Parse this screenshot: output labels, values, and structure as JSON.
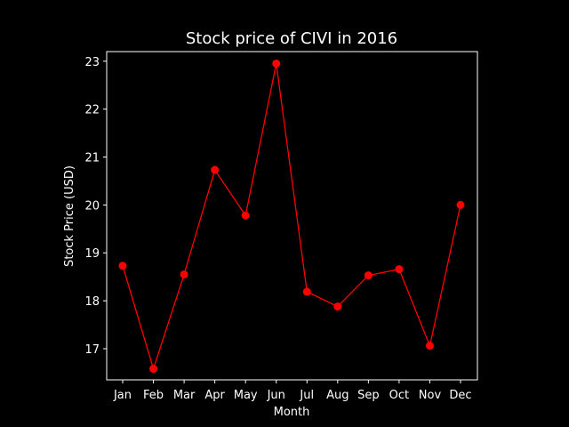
{
  "chart_data": {
    "type": "line",
    "title": "Stock price of CIVI in 2016",
    "xlabel": "Month",
    "ylabel": "Stock Price (USD)",
    "categories": [
      "Jan",
      "Feb",
      "Mar",
      "Apr",
      "May",
      "Jun",
      "Jul",
      "Aug",
      "Sep",
      "Oct",
      "Nov",
      "Dec"
    ],
    "series": [
      {
        "values": [
          18.73,
          16.58,
          18.55,
          20.73,
          19.78,
          22.95,
          18.19,
          17.88,
          18.53,
          18.66,
          17.06,
          20.0
        ],
        "color": "#ff0000"
      }
    ],
    "ylim": [
      16.35,
      23.2
    ],
    "yticks": [
      17,
      18,
      19,
      20,
      21,
      22,
      23
    ],
    "grid": false,
    "background": "#000000",
    "axis_color": "#ffffff"
  }
}
